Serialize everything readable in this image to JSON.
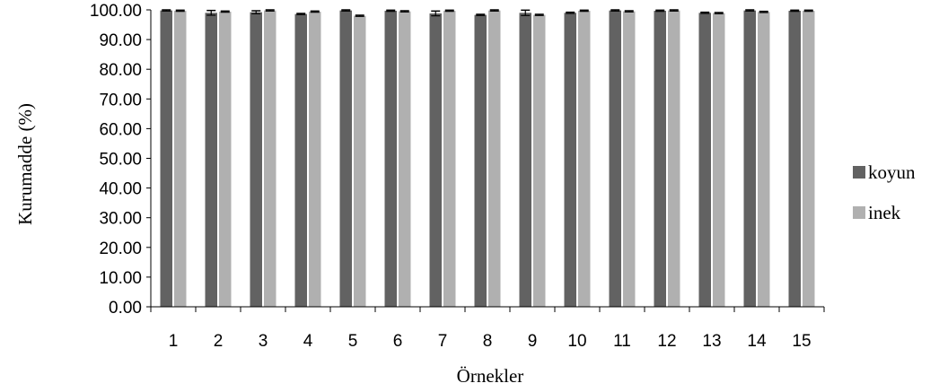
{
  "chart_data": {
    "type": "bar",
    "xlabel": "Örnekler",
    "ylabel": "Kurumadde (%)",
    "ylim": [
      0,
      100
    ],
    "yticks": [
      "0.00",
      "10.00",
      "20.00",
      "30.00",
      "40.00",
      "50.00",
      "60.00",
      "70.00",
      "80.00",
      "90.00",
      "100.00"
    ],
    "categories": [
      "1",
      "2",
      "3",
      "4",
      "5",
      "6",
      "7",
      "8",
      "9",
      "10",
      "11",
      "12",
      "13",
      "14",
      "15"
    ],
    "legend_position": "right",
    "grid": false,
    "error_bars": true,
    "series": [
      {
        "name": "koyun",
        "color": "#626262",
        "values": [
          99.8,
          99.0,
          99.2,
          98.6,
          99.8,
          99.7,
          98.8,
          98.3,
          99.0,
          99.0,
          99.8,
          99.7,
          99.0,
          99.8,
          99.7
        ],
        "errors": [
          0.2,
          0.8,
          0.5,
          0.2,
          0.2,
          0.2,
          0.8,
          0.2,
          0.9,
          0.2,
          0.2,
          0.2,
          0.2,
          0.2,
          0.2
        ]
      },
      {
        "name": "inek",
        "color": "#b0b0b0",
        "values": [
          99.7,
          99.4,
          99.8,
          99.4,
          98.0,
          99.5,
          99.7,
          99.8,
          98.3,
          99.7,
          99.5,
          99.8,
          98.9,
          99.3,
          99.7
        ],
        "errors": [
          0.2,
          0.2,
          0.2,
          0.2,
          0.2,
          0.2,
          0.2,
          0.2,
          0.2,
          0.2,
          0.2,
          0.2,
          0.2,
          0.2,
          0.2
        ]
      }
    ]
  }
}
